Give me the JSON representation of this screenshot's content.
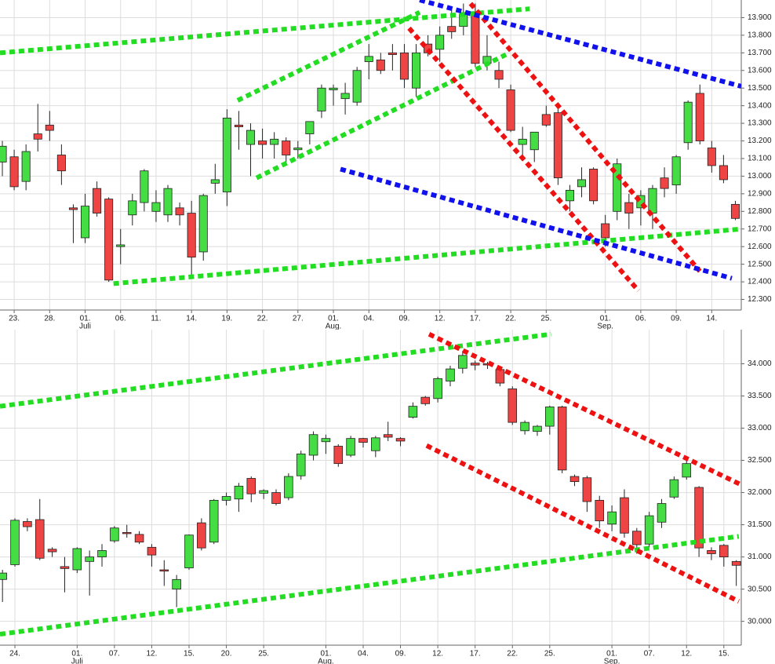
{
  "chart_data": [
    {
      "type": "candlestick",
      "open": [
        13.08,
        13.11,
        12.97,
        13.24,
        13.29,
        13.12,
        12.82,
        12.65,
        12.93,
        12.87,
        12.6,
        12.78,
        12.85,
        12.8,
        12.78,
        12.82,
        12.79,
        12.57,
        12.96,
        12.91,
        13.29,
        13.18,
        13.2,
        13.18,
        13.2,
        13.15,
        13.24,
        13.37,
        13.49,
        13.44,
        13.42,
        13.65,
        13.66,
        13.7,
        13.7,
        13.5,
        13.75,
        13.72,
        13.85,
        13.85,
        13.93,
        13.64,
        13.6,
        13.49,
        13.18,
        13.15,
        13.35,
        13.36,
        12.86,
        12.94,
        13.04,
        12.73,
        12.8,
        12.85,
        12.82,
        12.79,
        12.99,
        12.95,
        13.19,
        13.47,
        13.16,
        13.06,
        12.84
      ],
      "high": [
        13.2,
        13.15,
        13.18,
        13.41,
        13.37,
        13.18,
        12.84,
        12.9,
        12.97,
        12.88,
        12.7,
        12.9,
        13.04,
        12.92,
        12.95,
        12.85,
        12.86,
        12.9,
        13.07,
        13.38,
        13.37,
        13.3,
        13.27,
        13.25,
        13.22,
        13.2,
        13.3,
        13.52,
        13.52,
        13.53,
        13.62,
        13.75,
        13.7,
        13.75,
        13.75,
        13.75,
        13.8,
        13.85,
        13.95,
        13.98,
        13.98,
        13.8,
        13.65,
        13.52,
        13.28,
        13.24,
        13.4,
        13.4,
        12.95,
        13.05,
        13.05,
        12.78,
        13.1,
        12.9,
        12.92,
        12.95,
        13.05,
        13.12,
        13.43,
        13.52,
        13.2,
        13.12,
        12.86
      ],
      "low": [
        13.0,
        12.92,
        12.92,
        13.14,
        13.2,
        12.95,
        12.62,
        12.62,
        12.77,
        12.4,
        12.5,
        12.72,
        12.8,
        12.74,
        12.74,
        12.72,
        12.42,
        12.52,
        12.9,
        12.83,
        13.15,
        13.0,
        13.1,
        13.1,
        13.08,
        13.1,
        13.18,
        13.33,
        13.4,
        13.35,
        13.4,
        13.55,
        13.58,
        13.6,
        13.5,
        13.45,
        13.68,
        13.65,
        13.78,
        13.8,
        13.62,
        13.6,
        13.5,
        13.25,
        13.1,
        13.08,
        13.28,
        12.95,
        12.8,
        12.88,
        12.84,
        12.6,
        12.75,
        12.7,
        12.72,
        12.7,
        12.88,
        12.9,
        13.15,
        13.18,
        13.02,
        12.96,
        12.75
      ],
      "close": [
        13.17,
        12.94,
        13.14,
        13.21,
        13.26,
        13.03,
        12.81,
        12.83,
        12.79,
        12.41,
        12.61,
        12.86,
        13.03,
        12.85,
        12.93,
        12.78,
        12.54,
        12.89,
        12.98,
        13.33,
        13.28,
        13.26,
        13.18,
        13.21,
        13.12,
        13.16,
        13.31,
        13.5,
        13.5,
        13.47,
        13.6,
        13.68,
        13.6,
        13.69,
        13.55,
        13.7,
        13.7,
        13.8,
        13.82,
        13.92,
        13.64,
        13.68,
        13.55,
        13.26,
        13.21,
        13.25,
        13.29,
        12.99,
        12.92,
        12.98,
        12.86,
        12.65,
        13.07,
        12.79,
        12.89,
        12.93,
        12.93,
        13.11,
        13.42,
        13.2,
        13.06,
        12.98,
        12.76
      ],
      "up_color": "#44dd44",
      "down_color": "#ee4444",
      "xlim": [
        -0.2,
        62.5
      ],
      "ylim": [
        12.24,
        14.0
      ],
      "xticks": [
        {
          "value": 1,
          "label": "23."
        },
        {
          "value": 4,
          "label": "28."
        },
        {
          "value": 7,
          "label": "01.",
          "month": "Juli"
        },
        {
          "value": 10,
          "label": "06."
        },
        {
          "value": 13,
          "label": "11."
        },
        {
          "value": 16,
          "label": "14."
        },
        {
          "value": 19,
          "label": "19."
        },
        {
          "value": 22,
          "label": "22."
        },
        {
          "value": 25,
          "label": "27."
        },
        {
          "value": 28,
          "label": "01.",
          "month": "Aug."
        },
        {
          "value": 31,
          "label": "04."
        },
        {
          "value": 34,
          "label": "09."
        },
        {
          "value": 37,
          "label": "12."
        },
        {
          "value": 40,
          "label": "17."
        },
        {
          "value": 43,
          "label": "22."
        },
        {
          "value": 46,
          "label": "25."
        },
        {
          "value": 51,
          "label": "01.",
          "month": "Sep."
        },
        {
          "value": 54,
          "label": "06."
        },
        {
          "value": 57,
          "label": "09."
        },
        {
          "value": 60,
          "label": "14."
        }
      ],
      "yticks": [
        {
          "value": 12.3,
          "label": "12.300"
        },
        {
          "value": 12.4,
          "label": "12.400"
        },
        {
          "value": 12.5,
          "label": "12.500"
        },
        {
          "value": 12.6,
          "label": "12.600"
        },
        {
          "value": 12.7,
          "label": "12.700"
        },
        {
          "value": 12.8,
          "label": "12.800"
        },
        {
          "value": 12.9,
          "label": "12.900"
        },
        {
          "value": 13.0,
          "label": "13.000"
        },
        {
          "value": 13.1,
          "label": "13.100"
        },
        {
          "value": 13.2,
          "label": "13.200"
        },
        {
          "value": 13.3,
          "label": "13.300"
        },
        {
          "value": 13.4,
          "label": "13.400"
        },
        {
          "value": 13.5,
          "label": "13.500"
        },
        {
          "value": 13.6,
          "label": "13.600"
        },
        {
          "value": 13.7,
          "label": "13.700"
        },
        {
          "value": 13.8,
          "label": "13.800"
        },
        {
          "value": 13.9,
          "label": "13.900"
        }
      ],
      "grid": true,
      "lines": [
        {
          "color": "#22dd22",
          "x": [
            -0.2,
            44.6
          ],
          "y": [
            13.7,
            13.95
          ]
        },
        {
          "color": "#22dd22",
          "x": [
            19.9,
            35.3
          ],
          "y": [
            13.43,
            13.93
          ]
        },
        {
          "color": "#22dd22",
          "x": [
            21.5,
            42.6
          ],
          "y": [
            12.99,
            13.69
          ]
        },
        {
          "color": "#22dd22",
          "x": [
            9.4,
            62.5
          ],
          "y": [
            12.39,
            12.7
          ]
        },
        {
          "color": "#ee1111",
          "x": [
            34.4,
            53.8
          ],
          "y": [
            13.84,
            12.35
          ]
        },
        {
          "color": "#ee1111",
          "x": [
            39.6,
            59.0
          ],
          "y": [
            13.98,
            12.46
          ]
        },
        {
          "color": "#1111ee",
          "x": [
            35.3,
            62.5
          ],
          "y": [
            14.0,
            13.51
          ]
        },
        {
          "color": "#1111ee",
          "x": [
            28.6,
            61.7
          ],
          "y": [
            13.04,
            12.42
          ]
        }
      ]
    },
    {
      "type": "candlestick",
      "open": [
        30.65,
        30.88,
        31.55,
        31.58,
        31.12,
        30.85,
        30.8,
        30.93,
        31.0,
        31.25,
        31.38,
        31.35,
        31.15,
        30.8,
        30.5,
        30.83,
        31.53,
        31.23,
        31.88,
        31.9,
        32.22,
        31.99,
        32.0,
        31.92,
        32.26,
        32.58,
        32.79,
        32.72,
        32.58,
        32.84,
        32.65,
        32.9,
        32.84,
        33.17,
        33.48,
        33.46,
        33.73,
        33.93,
        34.01,
        34.0,
        33.91,
        33.61,
        32.96,
        32.95,
        33.03,
        33.33,
        32.25,
        32.23,
        31.88,
        31.51,
        31.92,
        31.4,
        31.2,
        31.54,
        31.93,
        32.24,
        32.08,
        31.1,
        31.18,
        30.93
      ],
      "high": [
        30.8,
        31.6,
        31.6,
        31.9,
        31.15,
        31.0,
        31.15,
        31.1,
        31.2,
        31.48,
        31.5,
        31.4,
        31.2,
        30.95,
        30.72,
        31.35,
        31.6,
        31.9,
        32.0,
        32.15,
        32.25,
        32.05,
        32.05,
        32.3,
        32.65,
        32.95,
        32.9,
        32.75,
        32.88,
        32.85,
        32.88,
        33.1,
        32.86,
        33.4,
        33.5,
        33.8,
        33.97,
        34.2,
        34.05,
        34.03,
        33.95,
        33.65,
        33.12,
        33.05,
        33.35,
        33.35,
        32.28,
        32.26,
        31.95,
        31.8,
        32.05,
        31.45,
        31.7,
        31.9,
        32.25,
        32.5,
        32.1,
        31.15,
        31.2,
        30.95
      ],
      "low": [
        30.3,
        30.85,
        31.4,
        30.95,
        31.0,
        30.45,
        30.75,
        30.4,
        30.85,
        31.22,
        31.3,
        31.2,
        30.85,
        30.55,
        30.22,
        30.8,
        31.1,
        31.2,
        31.8,
        31.7,
        31.85,
        31.9,
        31.8,
        31.88,
        32.2,
        32.5,
        32.6,
        32.4,
        32.55,
        32.7,
        32.55,
        32.8,
        32.72,
        33.15,
        33.35,
        33.4,
        33.65,
        33.85,
        33.9,
        33.92,
        33.65,
        33.05,
        32.9,
        32.88,
        32.9,
        32.3,
        32.1,
        31.7,
        31.45,
        31.4,
        31.3,
        31.05,
        31.15,
        31.45,
        31.9,
        32.2,
        31.0,
        30.95,
        30.85,
        30.55
      ],
      "close": [
        30.75,
        31.57,
        31.47,
        30.98,
        31.08,
        30.82,
        31.13,
        31.0,
        31.1,
        31.45,
        31.37,
        31.23,
        31.03,
        30.78,
        30.65,
        31.34,
        31.14,
        31.88,
        31.94,
        32.1,
        31.98,
        32.03,
        31.83,
        32.25,
        32.6,
        32.9,
        32.84,
        32.45,
        32.84,
        32.78,
        32.85,
        32.86,
        32.8,
        33.34,
        33.38,
        33.77,
        33.92,
        34.13,
        33.98,
        33.99,
        33.7,
        33.09,
        33.09,
        33.03,
        33.33,
        32.35,
        32.17,
        31.86,
        31.56,
        31.7,
        31.37,
        31.19,
        31.64,
        31.83,
        32.2,
        32.45,
        31.14,
        31.05,
        31.0,
        30.87
      ],
      "up_color": "#44dd44",
      "down_color": "#ee4444",
      "xlim": [
        -0.2,
        59.4
      ],
      "ylim": [
        29.63,
        34.53
      ],
      "xticks": [
        {
          "value": 1,
          "label": "24."
        },
        {
          "value": 6,
          "label": "01.",
          "month": "Juli"
        },
        {
          "value": 9,
          "label": "07."
        },
        {
          "value": 12,
          "label": "12."
        },
        {
          "value": 15,
          "label": "15."
        },
        {
          "value": 18,
          "label": "20."
        },
        {
          "value": 21,
          "label": "25."
        },
        {
          "value": 26,
          "label": "01.",
          "month": "Aug."
        },
        {
          "value": 29,
          "label": "04."
        },
        {
          "value": 32,
          "label": "09."
        },
        {
          "value": 35,
          "label": "12."
        },
        {
          "value": 38,
          "label": "17."
        },
        {
          "value": 41,
          "label": "22."
        },
        {
          "value": 44,
          "label": "25."
        },
        {
          "value": 49,
          "label": "01.",
          "month": "Sep."
        },
        {
          "value": 52,
          "label": "07."
        },
        {
          "value": 55,
          "label": "12."
        },
        {
          "value": 58,
          "label": "15."
        }
      ],
      "yticks": [
        {
          "value": 30,
          "label": "30.000"
        },
        {
          "value": 30.5,
          "label": "30.500"
        },
        {
          "value": 31,
          "label": "31.000"
        },
        {
          "value": 31.5,
          "label": "31.500"
        },
        {
          "value": 32,
          "label": "32.000"
        },
        {
          "value": 32.5,
          "label": "32.500"
        },
        {
          "value": 33,
          "label": "33.000"
        },
        {
          "value": 33.5,
          "label": "33.500"
        },
        {
          "value": 34,
          "label": "34.000"
        }
      ],
      "grid": true,
      "lines": [
        {
          "color": "#22dd22",
          "x": [
            -0.2,
            44.1
          ],
          "y": [
            33.34,
            34.46
          ]
        },
        {
          "color": "#22dd22",
          "x": [
            -0.2,
            59.2
          ],
          "y": [
            29.8,
            31.32
          ]
        },
        {
          "color": "#ee1111",
          "x": [
            34.3,
            59.4
          ],
          "y": [
            34.46,
            32.12
          ]
        },
        {
          "color": "#ee1111",
          "x": [
            34.1,
            59.2
          ],
          "y": [
            32.73,
            30.31
          ]
        }
      ]
    }
  ]
}
